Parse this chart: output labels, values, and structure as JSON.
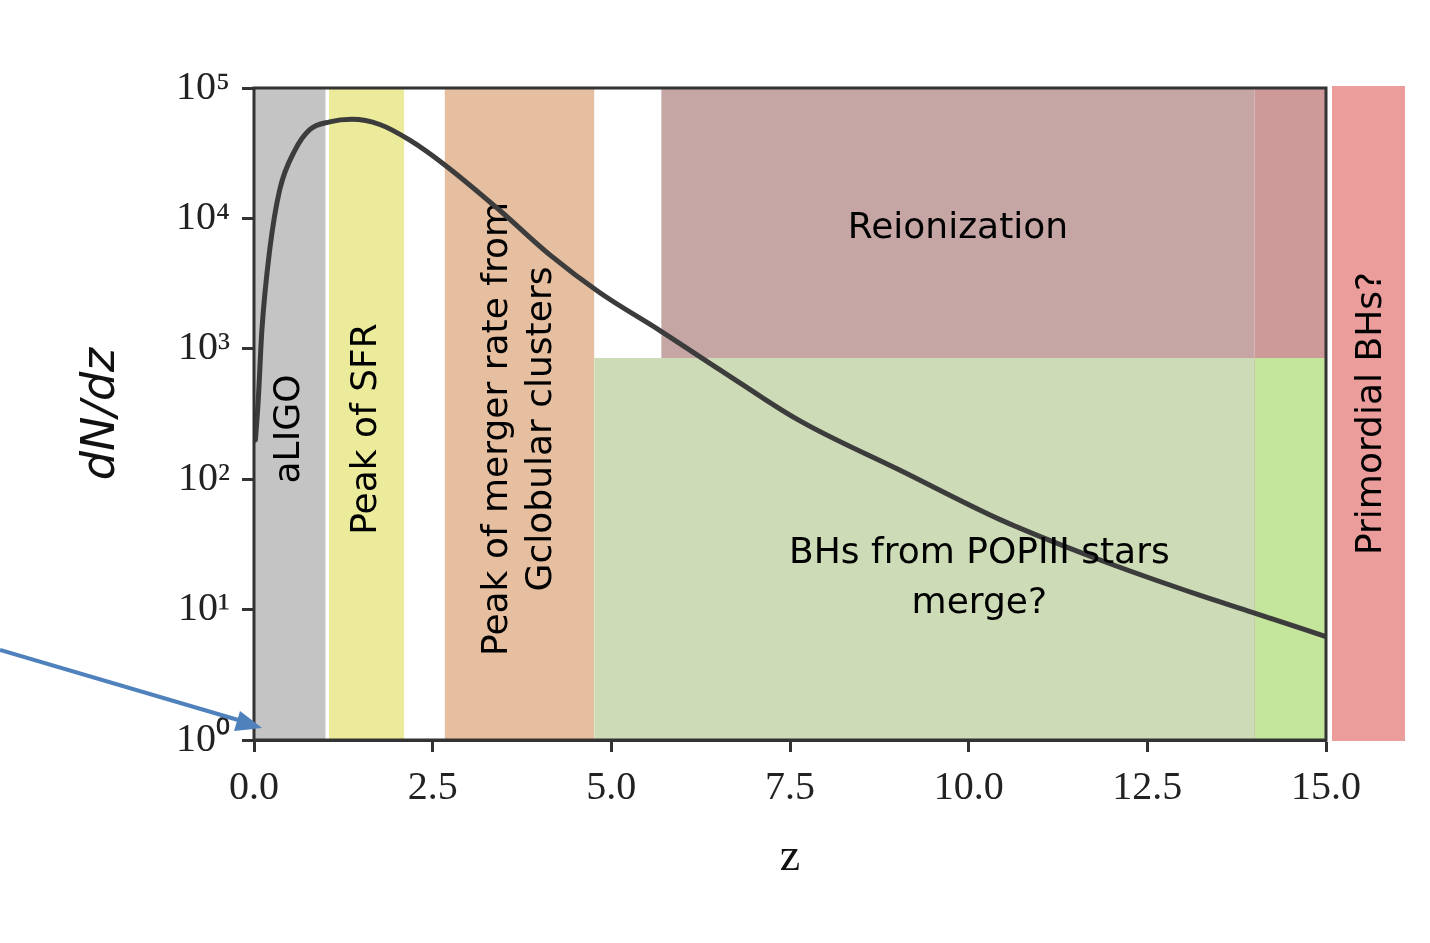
{
  "chart_data": {
    "type": "line",
    "xlabel": "z",
    "ylabel": "dN/dz",
    "log": "y",
    "grid": false,
    "legend": false,
    "marker": "none",
    "line_style": "solid",
    "xlim": [
      0,
      15
    ],
    "ylim": [
      1,
      100000
    ],
    "xticks": [
      {
        "value": 0,
        "label": "0.0"
      },
      {
        "value": 2.5,
        "label": "2.5"
      },
      {
        "value": 5,
        "label": "5.0"
      },
      {
        "value": 7.5,
        "label": "7.5"
      },
      {
        "value": 10,
        "label": "10.0"
      },
      {
        "value": 12.5,
        "label": "12.5"
      },
      {
        "value": 15,
        "label": "15.0"
      }
    ],
    "yticks": [
      {
        "value": 1,
        "label": "10⁰"
      },
      {
        "value": 10,
        "label": "10¹"
      },
      {
        "value": 100,
        "label": "10²"
      },
      {
        "value": 1000,
        "label": "10³"
      },
      {
        "value": 10000,
        "label": "10⁴"
      },
      {
        "value": 100000,
        "label": "10⁵"
      }
    ],
    "series": [
      {
        "color": "#3c3c3c",
        "x": [
          0.02,
          0.06,
          0.11,
          0.22,
          0.36,
          0.57,
          0.78,
          1.06,
          1.37,
          1.76,
          2.18,
          2.67,
          3.44,
          4.14,
          4.84,
          5.68,
          6.52,
          7.64,
          9.04,
          10.44,
          11.84,
          13.23,
          13.98,
          15
        ],
        "values": [
          200,
          410,
          1380,
          5750,
          16600,
          33100,
          47900,
          55000,
          57500,
          52500,
          39800,
          25700,
          11500,
          5250,
          2690,
          1380,
          690,
          280,
          117,
          49,
          24,
          12.9,
          9.5,
          6.2
        ]
      },
      {
        "type": "area",
        "name": "BHs from POPIII stars\nmerge?",
        "color": "#cddcb6",
        "x": [
          4.76,
          14
        ],
        "values": [
          850,
          850
        ]
      },
      {
        "type": "area",
        "color": "#c4e59c",
        "x": [
          14,
          15
        ],
        "values": [
          850,
          850
        ]
      }
    ],
    "bands": [
      {
        "axis": "x",
        "from": 0,
        "to": 1.0,
        "label": "aLIGO",
        "color": "#c4c4c4"
      },
      {
        "axis": "x",
        "from": 1.05,
        "to": 2.1,
        "label": "Peak of SFR",
        "color": "#ebeb9b"
      },
      {
        "axis": "x",
        "from": 2.67,
        "to": 4.76,
        "label": "Peak of merger rate from\nGclobular clusters",
        "color": "#e5bfa0"
      },
      {
        "axis": "x",
        "from": 5.7,
        "to": 14,
        "label": "Reionization",
        "color": "#c6a6a5"
      },
      {
        "axis": "x",
        "from": 14,
        "to": 15,
        "color": "#cd9999"
      }
    ],
    "annotations": [
      "Primordial BHs?"
    ]
  }
}
